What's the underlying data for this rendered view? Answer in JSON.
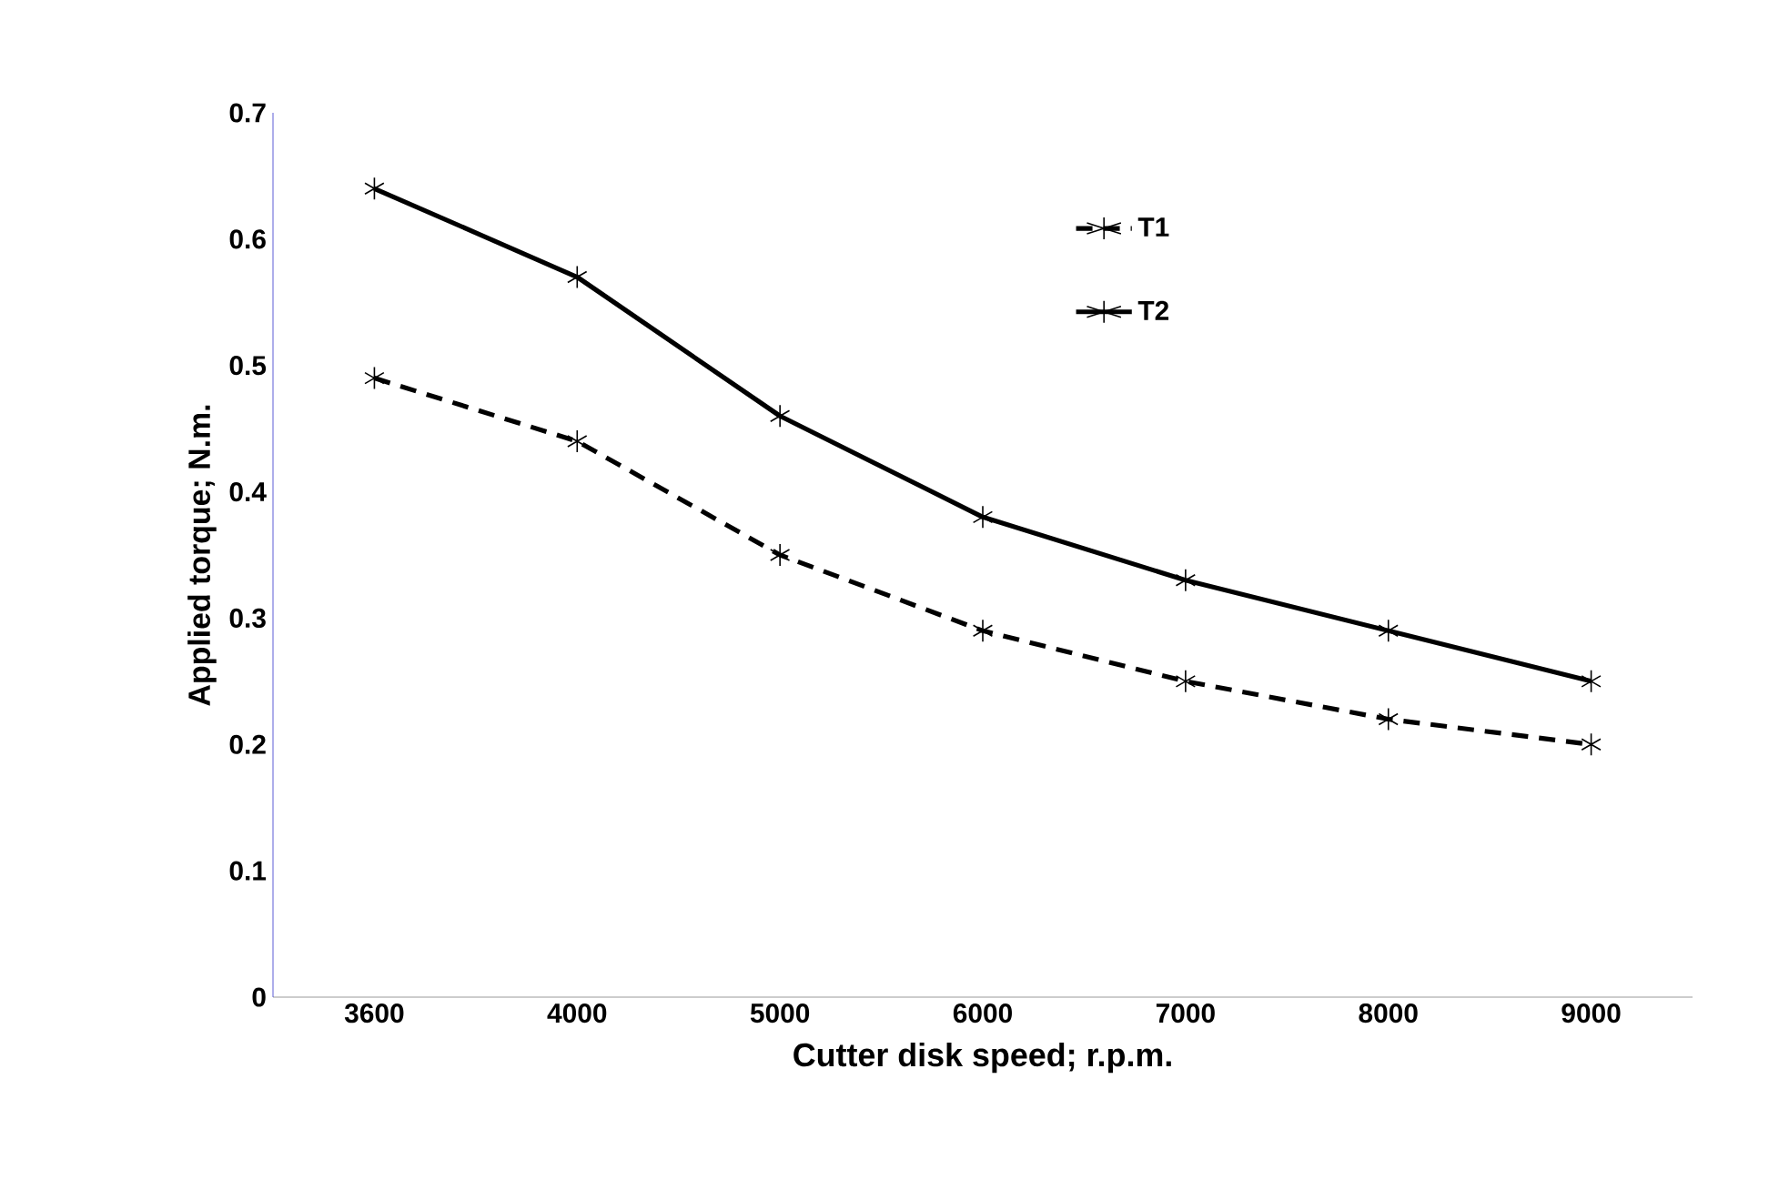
{
  "chart_data": {
    "type": "line",
    "xlabel": "Cutter disk speed;  r.p.m.",
    "ylabel": "Applied torque; N.m.",
    "categories": [
      "3600",
      "4000",
      "5000",
      "6000",
      "7000",
      "8000",
      "9000"
    ],
    "series": [
      {
        "name": "T1",
        "color": "#000000",
        "line_style": "dashed",
        "values": [
          0.49,
          0.44,
          0.35,
          0.29,
          0.25,
          0.22,
          0.2
        ]
      },
      {
        "name": "T2",
        "color": "#000000",
        "line_style": "solid",
        "values": [
          0.64,
          0.57,
          0.46,
          0.38,
          0.33,
          0.29,
          0.25
        ]
      }
    ],
    "ylim": [
      0,
      0.7
    ],
    "yticks": [
      0,
      0.1,
      0.2,
      0.3,
      0.4,
      0.5,
      0.6,
      0.7
    ],
    "marker": "cross",
    "legend": "top right",
    "grid": false
  }
}
